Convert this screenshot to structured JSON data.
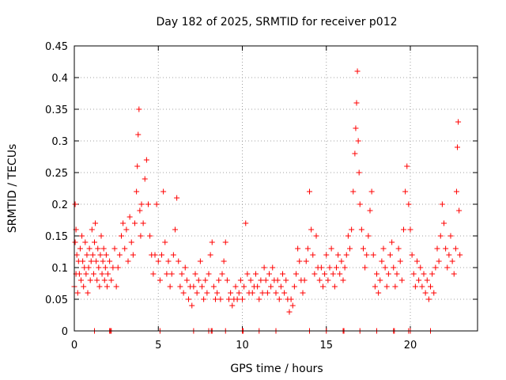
{
  "chart_data": {
    "type": "scatter",
    "title": "Day 182 of 2025, SRMTID for receiver p012",
    "xlabel": "GPS time / hours",
    "ylabel": "SRMTID / TECUs",
    "xlim": [
      0,
      24
    ],
    "ylim": [
      0,
      0.45
    ],
    "x_ticks": [
      0,
      5,
      10,
      15,
      20
    ],
    "x_tick_labels": [
      "0",
      "5",
      "10",
      "15",
      "20"
    ],
    "y_ticks": [
      0,
      0.05,
      0.1,
      0.15,
      0.2,
      0.25,
      0.3,
      0.35,
      0.4,
      0.45
    ],
    "y_tick_labels": [
      "0",
      "0.05",
      "0.1",
      "0.15",
      "0.2",
      "0.25",
      "0.3",
      "0.35",
      "0.4",
      "0.45"
    ],
    "grid": true,
    "marker": "+",
    "color": "#ff0000",
    "series": [
      {
        "name": "SRMTID",
        "points": [
          [
            0.0,
            0.07
          ],
          [
            0.05,
            0.2
          ],
          [
            0.05,
            0.14
          ],
          [
            0.1,
            0.16
          ],
          [
            0.1,
            0.09
          ],
          [
            0.15,
            0.12
          ],
          [
            0.2,
            0.06
          ],
          [
            0.25,
            0.11
          ],
          [
            0.3,
            0.09
          ],
          [
            0.35,
            0.13
          ],
          [
            0.4,
            0.08
          ],
          [
            0.45,
            0.15
          ],
          [
            0.5,
            0.11
          ],
          [
            0.55,
            0.07
          ],
          [
            0.6,
            0.1
          ],
          [
            0.65,
            0.14
          ],
          [
            0.7,
            0.09
          ],
          [
            0.75,
            0.12
          ],
          [
            0.8,
            0.06
          ],
          [
            0.85,
            0.1
          ],
          [
            0.9,
            0.13
          ],
          [
            0.95,
            0.08
          ],
          [
            1.0,
            0.11
          ],
          [
            1.05,
            0.16
          ],
          [
            1.1,
            0.12
          ],
          [
            1.15,
            0.09
          ],
          [
            1.2,
            0.14
          ],
          [
            1.25,
            0.17
          ],
          [
            1.3,
            0.11
          ],
          [
            1.35,
            0.08
          ],
          [
            1.4,
            0.13
          ],
          [
            1.45,
            0.1
          ],
          [
            1.5,
            0.07
          ],
          [
            1.55,
            0.12
          ],
          [
            1.6,
            0.15
          ],
          [
            1.65,
            0.09
          ],
          [
            1.7,
            0.11
          ],
          [
            1.75,
            0.13
          ],
          [
            1.8,
            0.08
          ],
          [
            1.85,
            0.1
          ],
          [
            1.9,
            0.12
          ],
          [
            1.95,
            0.07
          ],
          [
            2.0,
            0.09
          ],
          [
            2.1,
            0.11
          ],
          [
            2.2,
            0.08
          ],
          [
            2.3,
            0.1
          ],
          [
            2.4,
            0.13
          ],
          [
            2.5,
            0.07
          ],
          [
            2.6,
            0.1
          ],
          [
            2.7,
            0.12
          ],
          [
            2.8,
            0.15
          ],
          [
            2.9,
            0.17
          ],
          [
            3.0,
            0.13
          ],
          [
            3.1,
            0.16
          ],
          [
            3.2,
            0.11
          ],
          [
            3.3,
            0.18
          ],
          [
            3.4,
            0.14
          ],
          [
            3.5,
            0.12
          ],
          [
            3.6,
            0.17
          ],
          [
            3.7,
            0.22
          ],
          [
            3.75,
            0.26
          ],
          [
            3.8,
            0.31
          ],
          [
            3.85,
            0.35
          ],
          [
            3.9,
            0.19
          ],
          [
            3.95,
            0.15
          ],
          [
            4.0,
            0.2
          ],
          [
            4.1,
            0.17
          ],
          [
            4.2,
            0.24
          ],
          [
            4.3,
            0.27
          ],
          [
            4.4,
            0.2
          ],
          [
            4.5,
            0.15
          ],
          [
            4.6,
            0.12
          ],
          [
            4.7,
            0.09
          ],
          [
            4.8,
            0.12
          ],
          [
            4.9,
            0.2
          ],
          [
            5.0,
            0.11
          ],
          [
            5.1,
            0.08
          ],
          [
            5.2,
            0.12
          ],
          [
            5.3,
            0.22
          ],
          [
            5.4,
            0.14
          ],
          [
            5.5,
            0.09
          ],
          [
            5.6,
            0.11
          ],
          [
            5.7,
            0.07
          ],
          [
            5.8,
            0.09
          ],
          [
            5.9,
            0.12
          ],
          [
            6.0,
            0.16
          ],
          [
            6.1,
            0.21
          ],
          [
            6.2,
            0.11
          ],
          [
            6.3,
            0.07
          ],
          [
            6.4,
            0.09
          ],
          [
            6.5,
            0.06
          ],
          [
            6.6,
            0.1
          ],
          [
            6.7,
            0.08
          ],
          [
            6.8,
            0.05
          ],
          [
            6.9,
            0.07
          ],
          [
            7.0,
            0.04
          ],
          [
            7.1,
            0.07
          ],
          [
            7.2,
            0.09
          ],
          [
            7.3,
            0.06
          ],
          [
            7.4,
            0.08
          ],
          [
            7.5,
            0.11
          ],
          [
            7.6,
            0.07
          ],
          [
            7.7,
            0.05
          ],
          [
            7.8,
            0.08
          ],
          [
            7.9,
            0.06
          ],
          [
            8.0,
            0.09
          ],
          [
            8.1,
            0.12
          ],
          [
            8.2,
            0.14
          ],
          [
            8.3,
            0.07
          ],
          [
            8.4,
            0.05
          ],
          [
            8.5,
            0.06
          ],
          [
            8.6,
            0.08
          ],
          [
            8.7,
            0.05
          ],
          [
            8.8,
            0.09
          ],
          [
            8.9,
            0.11
          ],
          [
            9.0,
            0.14
          ],
          [
            9.1,
            0.08
          ],
          [
            9.2,
            0.05
          ],
          [
            9.3,
            0.06
          ],
          [
            9.4,
            0.04
          ],
          [
            9.5,
            0.05
          ],
          [
            9.6,
            0.07
          ],
          [
            9.7,
            0.05
          ],
          [
            9.8,
            0.06
          ],
          [
            9.9,
            0.08
          ],
          [
            10.0,
            0.05
          ],
          [
            10.1,
            0.07
          ],
          [
            10.2,
            0.17
          ],
          [
            10.3,
            0.09
          ],
          [
            10.4,
            0.06
          ],
          [
            10.5,
            0.08
          ],
          [
            10.6,
            0.06
          ],
          [
            10.7,
            0.07
          ],
          [
            10.8,
            0.09
          ],
          [
            10.9,
            0.07
          ],
          [
            11.0,
            0.05
          ],
          [
            11.1,
            0.08
          ],
          [
            11.2,
            0.06
          ],
          [
            11.3,
            0.1
          ],
          [
            11.4,
            0.08
          ],
          [
            11.5,
            0.06
          ],
          [
            11.6,
            0.09
          ],
          [
            11.7,
            0.07
          ],
          [
            11.8,
            0.1
          ],
          [
            11.9,
            0.08
          ],
          [
            12.0,
            0.06
          ],
          [
            12.1,
            0.08
          ],
          [
            12.2,
            0.05
          ],
          [
            12.3,
            0.07
          ],
          [
            12.4,
            0.09
          ],
          [
            12.5,
            0.06
          ],
          [
            12.6,
            0.08
          ],
          [
            12.7,
            0.05
          ],
          [
            12.8,
            0.03
          ],
          [
            12.9,
            0.05
          ],
          [
            13.0,
            0.04
          ],
          [
            13.1,
            0.07
          ],
          [
            13.2,
            0.09
          ],
          [
            13.3,
            0.13
          ],
          [
            13.4,
            0.11
          ],
          [
            13.5,
            0.08
          ],
          [
            13.6,
            0.06
          ],
          [
            13.7,
            0.08
          ],
          [
            13.8,
            0.11
          ],
          [
            13.9,
            0.13
          ],
          [
            14.0,
            0.22
          ],
          [
            14.1,
            0.16
          ],
          [
            14.2,
            0.12
          ],
          [
            14.3,
            0.09
          ],
          [
            14.4,
            0.15
          ],
          [
            14.5,
            0.1
          ],
          [
            14.6,
            0.08
          ],
          [
            14.7,
            0.1
          ],
          [
            14.8,
            0.07
          ],
          [
            14.9,
            0.09
          ],
          [
            15.0,
            0.12
          ],
          [
            15.1,
            0.08
          ],
          [
            15.2,
            0.1
          ],
          [
            15.3,
            0.13
          ],
          [
            15.4,
            0.09
          ],
          [
            15.5,
            0.07
          ],
          [
            15.6,
            0.1
          ],
          [
            15.7,
            0.12
          ],
          [
            15.8,
            0.09
          ],
          [
            15.9,
            0.11
          ],
          [
            16.0,
            0.08
          ],
          [
            16.1,
            0.1
          ],
          [
            16.2,
            0.12
          ],
          [
            16.3,
            0.15
          ],
          [
            16.4,
            0.13
          ],
          [
            16.5,
            0.16
          ],
          [
            16.6,
            0.22
          ],
          [
            16.7,
            0.28
          ],
          [
            16.75,
            0.32
          ],
          [
            16.8,
            0.36
          ],
          [
            16.85,
            0.41
          ],
          [
            16.9,
            0.3
          ],
          [
            16.95,
            0.25
          ],
          [
            17.0,
            0.2
          ],
          [
            17.1,
            0.16
          ],
          [
            17.2,
            0.13
          ],
          [
            17.3,
            0.1
          ],
          [
            17.4,
            0.12
          ],
          [
            17.5,
            0.15
          ],
          [
            17.6,
            0.19
          ],
          [
            17.7,
            0.22
          ],
          [
            17.8,
            0.12
          ],
          [
            17.9,
            0.07
          ],
          [
            18.0,
            0.09
          ],
          [
            18.1,
            0.06
          ],
          [
            18.2,
            0.08
          ],
          [
            18.3,
            0.11
          ],
          [
            18.4,
            0.13
          ],
          [
            18.5,
            0.1
          ],
          [
            18.6,
            0.07
          ],
          [
            18.7,
            0.09
          ],
          [
            18.8,
            0.12
          ],
          [
            18.9,
            0.14
          ],
          [
            19.0,
            0.1
          ],
          [
            19.1,
            0.07
          ],
          [
            19.2,
            0.09
          ],
          [
            19.3,
            0.13
          ],
          [
            19.4,
            0.11
          ],
          [
            19.5,
            0.08
          ],
          [
            19.6,
            0.16
          ],
          [
            19.7,
            0.22
          ],
          [
            19.8,
            0.26
          ],
          [
            19.9,
            0.2
          ],
          [
            20.0,
            0.16
          ],
          [
            20.1,
            0.12
          ],
          [
            20.2,
            0.09
          ],
          [
            20.3,
            0.07
          ],
          [
            20.4,
            0.11
          ],
          [
            20.5,
            0.08
          ],
          [
            20.6,
            0.1
          ],
          [
            20.7,
            0.07
          ],
          [
            20.8,
            0.09
          ],
          [
            20.9,
            0.06
          ],
          [
            21.0,
            0.08
          ],
          [
            21.1,
            0.05
          ],
          [
            21.2,
            0.07
          ],
          [
            21.3,
            0.09
          ],
          [
            21.4,
            0.06
          ],
          [
            21.5,
            0.1
          ],
          [
            21.6,
            0.13
          ],
          [
            21.7,
            0.11
          ],
          [
            21.8,
            0.15
          ],
          [
            21.9,
            0.2
          ],
          [
            22.0,
            0.17
          ],
          [
            22.1,
            0.13
          ],
          [
            22.2,
            0.1
          ],
          [
            22.3,
            0.12
          ],
          [
            22.4,
            0.15
          ],
          [
            22.5,
            0.11
          ],
          [
            22.6,
            0.09
          ],
          [
            22.7,
            0.13
          ],
          [
            22.75,
            0.22
          ],
          [
            22.8,
            0.29
          ],
          [
            22.85,
            0.33
          ],
          [
            22.9,
            0.19
          ],
          [
            22.95,
            0.12
          ]
        ]
      }
    ],
    "zero_marks_x": [
      1.2,
      2.1,
      2.15,
      2.2,
      5.1,
      7.1,
      8.0,
      8.15,
      8.2,
      9.0,
      10.0,
      10.05,
      11.0,
      12.0,
      14.0,
      15.0,
      16.0,
      16.05,
      17.0,
      18.0,
      19.0,
      19.05,
      19.9,
      20.0,
      21.2
    ]
  }
}
